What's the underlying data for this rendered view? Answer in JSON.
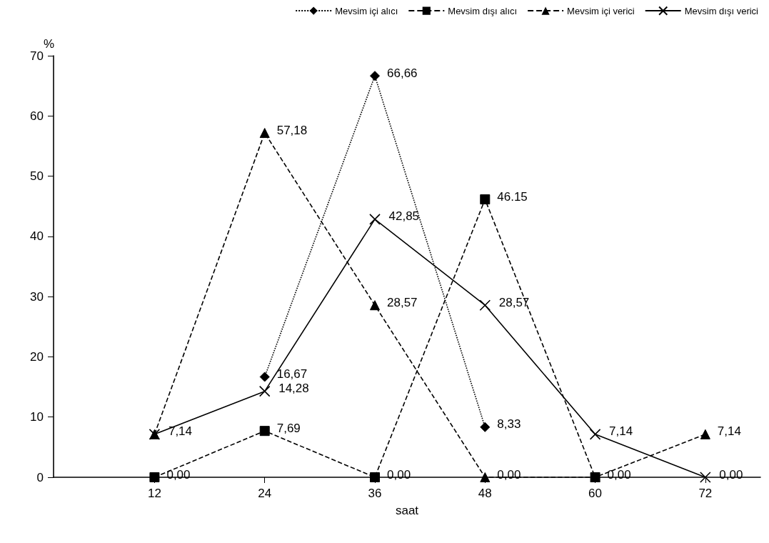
{
  "chart_data": {
    "type": "line",
    "xlabel": "saat",
    "ylabel": "%",
    "x": [
      12,
      24,
      36,
      48,
      60,
      72
    ],
    "xlim": [
      1,
      78
    ],
    "xticks": [
      12,
      24,
      36,
      48,
      60,
      72
    ],
    "ylim": [
      0,
      70
    ],
    "yticks": [
      0,
      10,
      20,
      30,
      40,
      50,
      60,
      70
    ],
    "grid": false,
    "legend": "top",
    "series": [
      {
        "name": "Mevsim içi alıcı",
        "color": "#000000",
        "marker": "diamond",
        "line_style": "dotted",
        "values": [
          null,
          16.67,
          66.66,
          8.33,
          null,
          null
        ],
        "value_labels": [
          null,
          "16,67",
          "66,66",
          "8,33",
          null,
          null
        ]
      },
      {
        "name": "Mevsim dışı alıcı",
        "color": "#000000",
        "marker": "square",
        "line_style": "dashed",
        "values": [
          0,
          7.69,
          0,
          46.15,
          0,
          null
        ],
        "value_labels": [
          "0,00",
          "7,69",
          "0,00",
          "46.15",
          "0,00",
          null
        ]
      },
      {
        "name": "Mevsim içi verici",
        "color": "#000000",
        "marker": "triangle",
        "line_style": "dashed",
        "values": [
          7.14,
          57.18,
          28.57,
          0,
          0,
          7.14
        ],
        "value_labels": [
          null,
          "57,18",
          "28,57",
          "0,00",
          null,
          "7,14"
        ]
      },
      {
        "name": "Mevsim dışı verici",
        "color": "#000000",
        "marker": "cross",
        "line_style": "solid",
        "values": [
          7.14,
          14.28,
          42.85,
          28.57,
          7.14,
          0
        ],
        "value_labels": [
          "7,14",
          "14,28",
          "42,85",
          "28,57",
          "7,14",
          "0,00"
        ]
      }
    ]
  }
}
